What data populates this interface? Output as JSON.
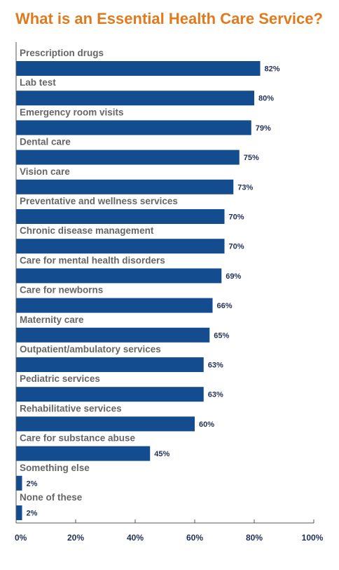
{
  "title": "What is an Essential Health Care Service?",
  "colors": {
    "title": "#e07a1e",
    "bar": "#134d8f",
    "axis": "#555555",
    "label": "#666666",
    "value": "#1f2f57"
  },
  "chart_data": {
    "type": "bar",
    "orientation": "horizontal",
    "title": "What is an Essential Health Care Service?",
    "xlabel": "",
    "ylabel": "",
    "xlim": [
      0,
      100
    ],
    "value_suffix": "%",
    "ticks": [
      0,
      20,
      40,
      60,
      80,
      100
    ],
    "tick_labels": [
      "0%",
      "20%",
      "40%",
      "60%",
      "80%",
      "100%"
    ],
    "grid": false,
    "categories": [
      "Prescription drugs",
      "Lab test",
      "Emergency room visits",
      "Dental care",
      "Vision care",
      "Preventative and wellness services",
      "Chronic disease management",
      "Care for mental health disorders",
      "Care for newborns",
      "Maternity care",
      "Outpatient/ambulatory services",
      "Pediatric services",
      "Rehabilitative services",
      "Care for substance abuse",
      "Something else",
      "None of these"
    ],
    "values": [
      82,
      80,
      79,
      75,
      73,
      70,
      70,
      69,
      66,
      65,
      63,
      63,
      60,
      45,
      2,
      2
    ],
    "value_labels": [
      "82%",
      "80%",
      "79%",
      "75%",
      "73%",
      "70%",
      "70%",
      "69%",
      "66%",
      "65%",
      "63%",
      "63%",
      "60%",
      "45%",
      "2%",
      "2%"
    ]
  }
}
